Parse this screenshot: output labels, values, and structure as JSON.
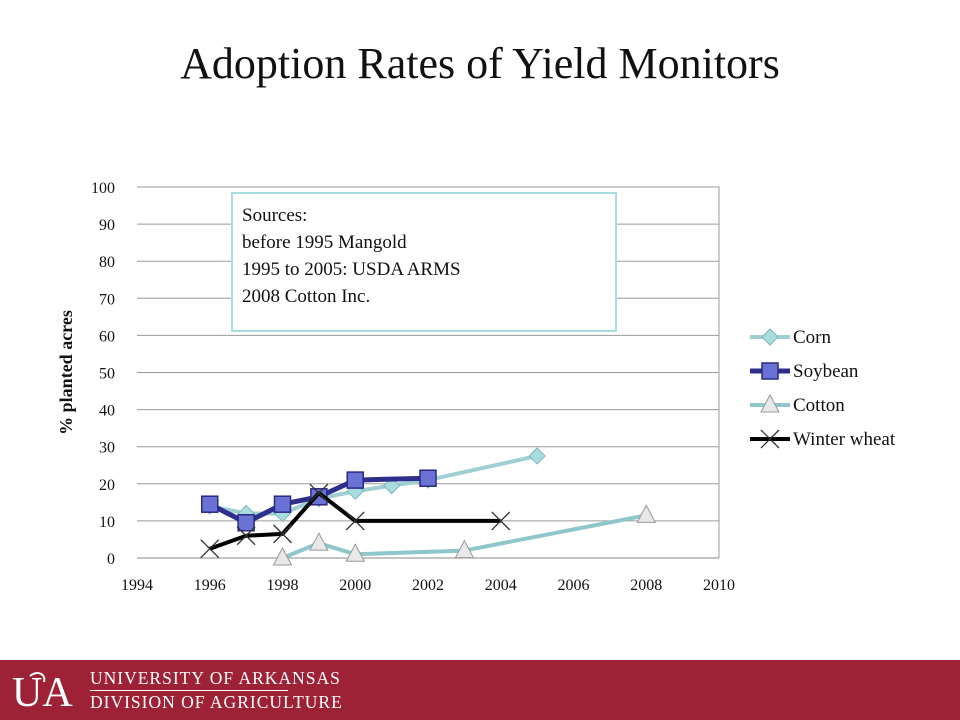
{
  "slide": {
    "title": "Adoption Rates of Yield Monitors"
  },
  "chart_data": {
    "type": "line",
    "title": "",
    "xlabel": "",
    "ylabel": "% planted acres",
    "xlim": [
      1994,
      2010
    ],
    "ylim": [
      0,
      100
    ],
    "x_ticks": [
      1994,
      1996,
      1998,
      2000,
      2002,
      2004,
      2006,
      2008,
      2010
    ],
    "y_ticks": [
      0,
      10,
      20,
      30,
      40,
      50,
      60,
      70,
      80,
      90,
      100
    ],
    "grid": "horizontal",
    "legend_position": "right",
    "series": [
      {
        "name": "Corn",
        "marker": "diamond",
        "color": "#9fcfd3",
        "marker_color": "#a8dde0",
        "line_width": 4,
        "points": [
          [
            1996,
            14
          ],
          [
            1997,
            12
          ],
          [
            1998,
            12
          ],
          [
            1999,
            16
          ],
          [
            2000,
            18
          ],
          [
            2001,
            19.5
          ],
          [
            2002,
            21
          ],
          [
            2005,
            27.5
          ]
        ]
      },
      {
        "name": "Soybean",
        "marker": "square",
        "color": "#2e2e8c",
        "marker_color": "#6b72d6",
        "line_width": 5,
        "points": [
          [
            1996,
            14.5
          ],
          [
            1997,
            9.5
          ],
          [
            1998,
            14.5
          ],
          [
            1999,
            16.5
          ],
          [
            2000,
            21
          ],
          [
            2002,
            21.5
          ]
        ]
      },
      {
        "name": "Cotton",
        "marker": "triangle",
        "color": "#8ec6cc",
        "marker_color": "#e8e8e8",
        "line_width": 4,
        "points": [
          [
            1998,
            0
          ],
          [
            1999,
            4
          ],
          [
            2000,
            1
          ],
          [
            2003,
            2
          ],
          [
            2008,
            11.5
          ]
        ]
      },
      {
        "name": "Winter wheat",
        "marker": "x",
        "color": "#000000",
        "marker_color": "#333333",
        "line_width": 4,
        "points": [
          [
            1996,
            2.5
          ],
          [
            1997,
            6
          ],
          [
            1998,
            6.5
          ],
          [
            1999,
            17.5
          ],
          [
            2000,
            10
          ],
          [
            2004,
            10
          ]
        ]
      }
    ],
    "annotations": [
      {
        "lines": [
          "Sources:",
          "before 1995 Mangold",
          "1995 to 2005: USDA ARMS",
          "2008 Cotton Inc."
        ],
        "border_color": "#a8dde0"
      }
    ]
  },
  "footer": {
    "logo_text": "UA",
    "org_line1": "UNIVERSITY OF ARKANSAS",
    "org_line2": "DIVISION OF AGRICULTURE",
    "background": "#9d2235"
  }
}
